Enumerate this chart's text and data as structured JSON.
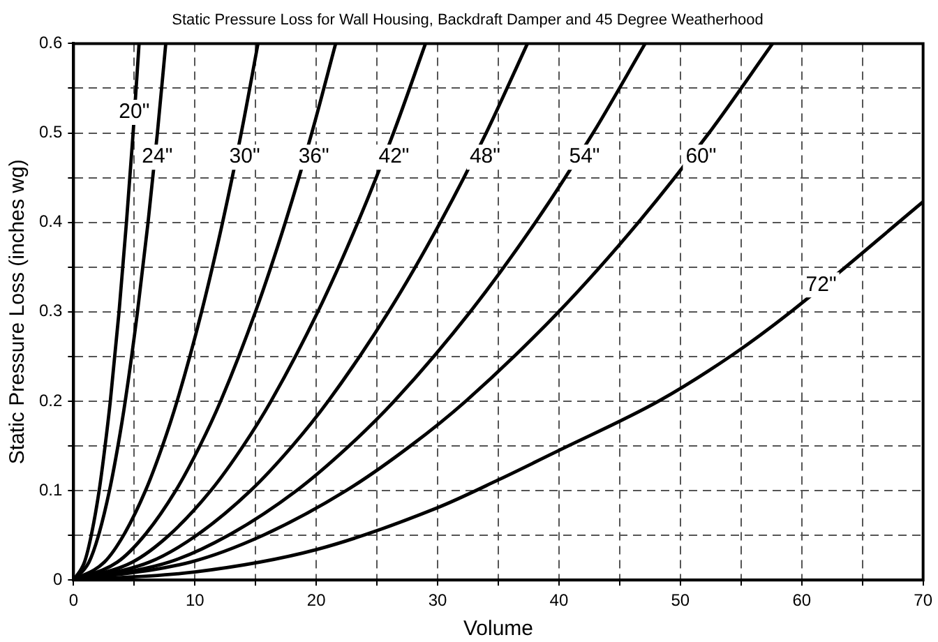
{
  "chart_data": {
    "type": "line",
    "title": "Static Pressure Loss for Wall Housing, Backdraft Damper and 45 Degree Weatherhood",
    "xlabel": "Volume",
    "ylabel": "Static Pressure Loss (inches wg)",
    "xlim": [
      0,
      70
    ],
    "ylim": [
      0,
      0.6
    ],
    "xticks": [
      0,
      {
        "value": 5,
        "label": null
      },
      10,
      {
        "value": 15,
        "label": null
      },
      20,
      {
        "value": 25,
        "label": null
      },
      30,
      {
        "value": 35,
        "label": null
      },
      40,
      {
        "value": 45,
        "label": null
      },
      50,
      {
        "value": 55,
        "label": null
      },
      60,
      {
        "value": 65,
        "label": null
      },
      70
    ],
    "yticks": [
      0,
      {
        "value": 0.05,
        "label": null
      },
      0.1,
      {
        "value": 0.15,
        "label": null
      },
      0.2,
      {
        "value": 0.25,
        "label": null
      },
      0.3,
      {
        "value": 0.35,
        "label": null
      },
      0.4,
      {
        "value": 0.45,
        "label": null
      },
      0.5,
      {
        "value": 0.55,
        "label": null
      },
      0.6
    ],
    "grid": true,
    "legend": false,
    "marker": "none",
    "line_style": "solid",
    "series": [
      {
        "color": "#000000",
        "x": [
          0,
          0.9,
          1.46,
          2.11,
          2.6,
          3.03,
          3.75,
          4.36,
          4.91,
          5.4
        ],
        "values": [
          0,
          0.02,
          0.05,
          0.1,
          0.15,
          0.2,
          0.3,
          0.4,
          0.5,
          0.6
        ]
      },
      {
        "color": "#000000",
        "x": [
          0,
          1.27,
          2.06,
          2.96,
          3.66,
          4.26,
          5.27,
          6.14,
          6.91,
          7.6
        ],
        "values": [
          0,
          0.02,
          0.05,
          0.1,
          0.15,
          0.2,
          0.3,
          0.4,
          0.5,
          0.6
        ]
      },
      {
        "color": "#000000",
        "x": [
          0,
          2.54,
          4.12,
          5.93,
          7.33,
          8.53,
          10.55,
          12.28,
          13.82,
          15.2
        ],
        "values": [
          0,
          0.02,
          0.05,
          0.1,
          0.15,
          0.2,
          0.3,
          0.4,
          0.5,
          0.6
        ]
      },
      {
        "color": "#000000",
        "x": [
          0,
          3.61,
          5.85,
          8.42,
          10.41,
          12.12,
          14.99,
          17.45,
          19.63,
          21.6
        ],
        "values": [
          0,
          0.02,
          0.05,
          0.1,
          0.15,
          0.2,
          0.3,
          0.4,
          0.5,
          0.6
        ]
      },
      {
        "color": "#000000",
        "x": [
          0,
          4.84,
          7.86,
          11.31,
          13.98,
          16.27,
          20.13,
          23.43,
          26.36,
          29.0
        ],
        "values": [
          0,
          0.02,
          0.05,
          0.1,
          0.15,
          0.2,
          0.3,
          0.4,
          0.5,
          0.6
        ]
      },
      {
        "color": "#000000",
        "x": [
          0,
          6.25,
          10.14,
          14.59,
          18.03,
          20.98,
          25.96,
          30.22,
          34.0,
          37.4
        ],
        "values": [
          0,
          0.02,
          0.05,
          0.1,
          0.15,
          0.2,
          0.3,
          0.4,
          0.5,
          0.6
        ]
      },
      {
        "color": "#000000",
        "x": [
          0,
          7.87,
          12.76,
          18.37,
          22.7,
          26.42,
          32.69,
          38.06,
          42.81,
          47.1
        ],
        "values": [
          0,
          0.02,
          0.05,
          0.1,
          0.15,
          0.2,
          0.3,
          0.4,
          0.5,
          0.6
        ]
      },
      {
        "color": "#000000",
        "x": [
          0,
          9.62,
          15.61,
          22.46,
          27.76,
          32.31,
          39.97,
          46.54,
          52.36,
          57.6
        ],
        "values": [
          0,
          0.02,
          0.05,
          0.1,
          0.15,
          0.2,
          0.3,
          0.4,
          0.5,
          0.6
        ]
      },
      {
        "color": "#000000",
        "x": [
          0,
          10,
          20,
          30,
          35,
          40,
          48.2,
          54.1,
          59.1,
          70
        ],
        "values": [
          0,
          0.009,
          0.034,
          0.081,
          0.112,
          0.145,
          0.2,
          0.25,
          0.3,
          0.423
        ]
      }
    ],
    "annotations": [
      {
        "text": "20\"",
        "x": 5.0,
        "y": 0.523
      },
      {
        "text": "24\"",
        "x": 6.9,
        "y": 0.473
      },
      {
        "text": "30\"",
        "x": 14.1,
        "y": 0.473
      },
      {
        "text": "36\"",
        "x": 19.8,
        "y": 0.473
      },
      {
        "text": "42\"",
        "x": 26.4,
        "y": 0.473
      },
      {
        "text": "48\"",
        "x": 33.9,
        "y": 0.473
      },
      {
        "text": "54\"",
        "x": 42.1,
        "y": 0.473
      },
      {
        "text": "60\"",
        "x": 51.7,
        "y": 0.473
      },
      {
        "text": "72\"",
        "x": 61.6,
        "y": 0.33
      }
    ]
  }
}
